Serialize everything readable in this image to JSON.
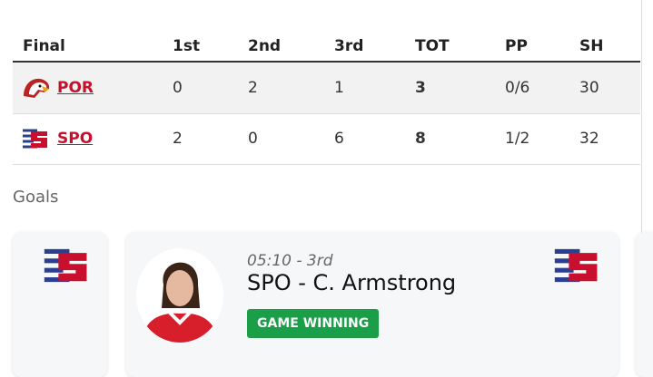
{
  "table": {
    "headers": [
      "Final",
      "1st",
      "2nd",
      "3rd",
      "TOT",
      "PP",
      "SH"
    ],
    "rows": [
      {
        "team": "POR",
        "logo": "portland-winterhawks-logo",
        "p1": "0",
        "p2": "2",
        "p3": "1",
        "tot": "3",
        "pp": "0/6",
        "sh": "30"
      },
      {
        "team": "SPO",
        "logo": "spokane-chiefs-logo",
        "p1": "2",
        "p2": "0",
        "p3": "6",
        "tot": "8",
        "pp": "1/2",
        "sh": "32"
      }
    ]
  },
  "goals": {
    "label": "Goals",
    "items": [
      {
        "time": "05:10 - 3rd",
        "scorer": "SPO - C. Armstrong",
        "badge": "GAME WINNING",
        "team_logo": "spokane-chiefs-logo"
      }
    ]
  },
  "colors": {
    "team_link": "#c8102e",
    "badge": "#1a9e48"
  }
}
